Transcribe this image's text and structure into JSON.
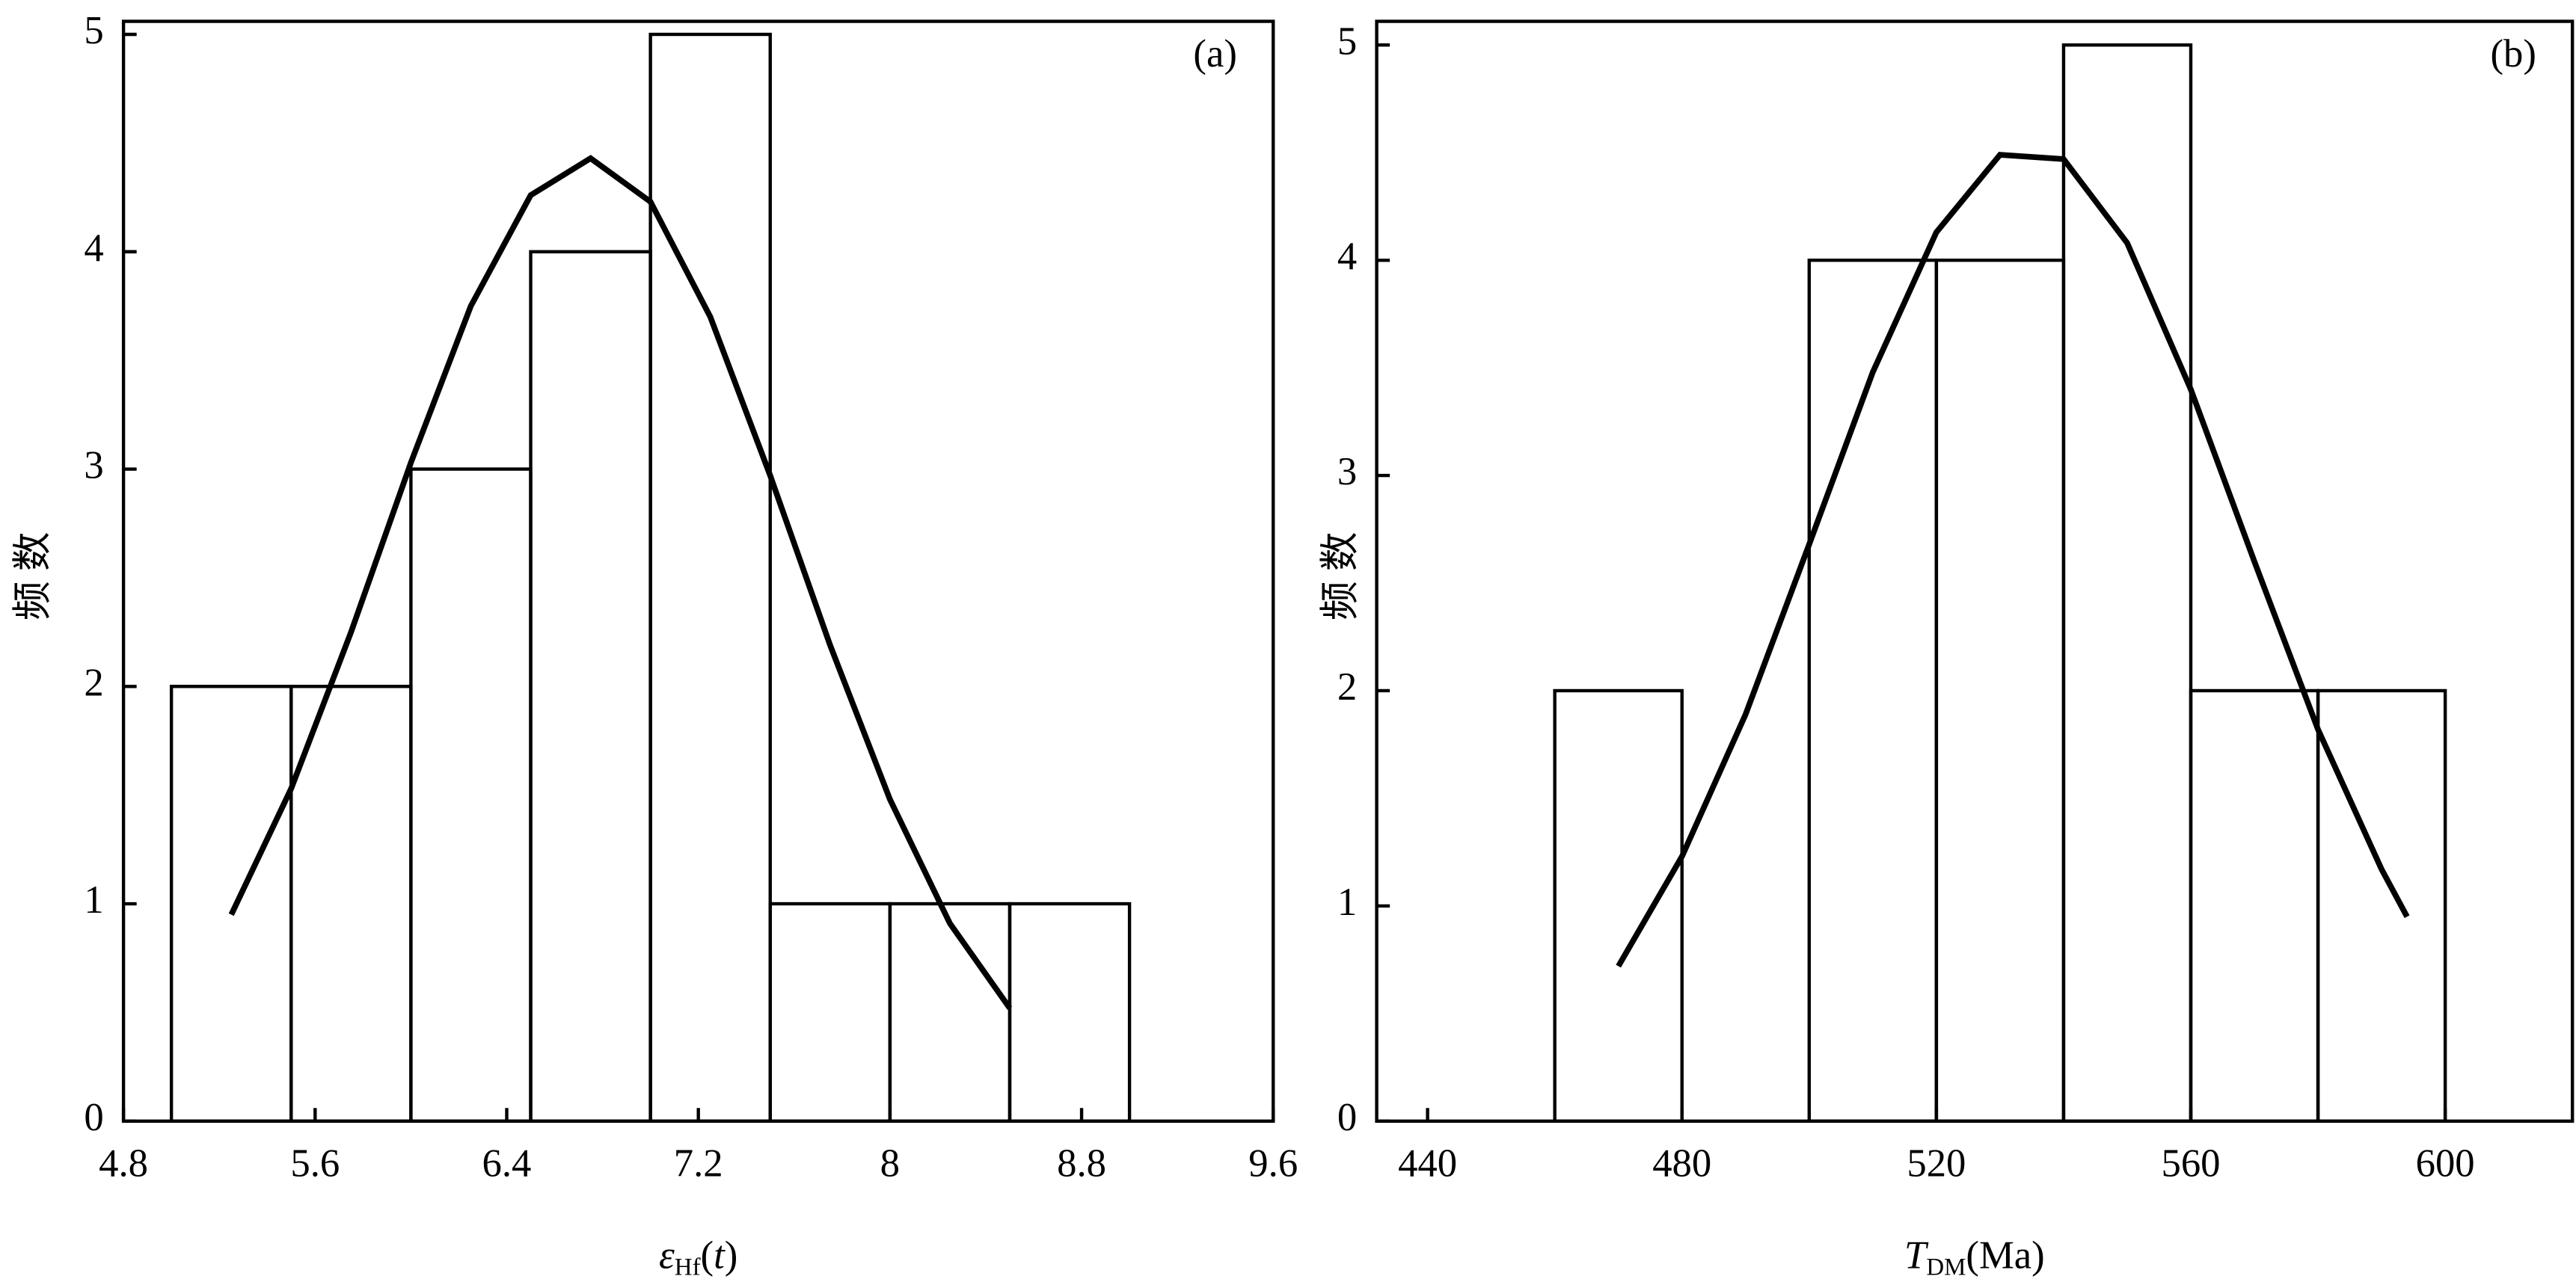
{
  "chart_data": [
    {
      "type": "histogram",
      "label": "(a)",
      "ylabel": "频数",
      "xlabel": [
        "ε",
        "Hf",
        "(",
        "t",
        ")"
      ],
      "bins": [
        5.0,
        5.5,
        6.0,
        6.5,
        7.0,
        7.5,
        8.0,
        8.5,
        9.0
      ],
      "values": [
        2,
        2,
        3,
        4,
        5,
        1,
        1,
        1
      ],
      "curve": {
        "x": [
          5.25,
          5.5,
          5.75,
          6.0,
          6.25,
          6.5,
          6.75,
          7.0,
          7.25,
          7.5,
          7.75,
          8.0,
          8.25,
          8.5
        ],
        "y": [
          0.95,
          1.53,
          2.25,
          3.03,
          3.75,
          4.26,
          4.43,
          4.23,
          3.7,
          2.97,
          2.19,
          1.48,
          0.91,
          0.52
        ]
      },
      "color": "#000000",
      "xlim": [
        4.8,
        9.6
      ],
      "xticks": [
        4.8,
        5.6,
        6.4,
        7.2,
        8,
        8.8,
        9.6
      ],
      "ylim": [
        0,
        5.06
      ],
      "yticks": [
        0,
        1,
        2,
        3,
        4,
        5
      ]
    },
    {
      "type": "histogram",
      "label": "(b)",
      "ylabel": "频数",
      "xlabel": [
        "T",
        "DM",
        "(Ma)"
      ],
      "bins": [
        460,
        480,
        500,
        520,
        540,
        560,
        580,
        600
      ],
      "values": [
        2,
        0,
        4,
        4,
        5,
        2,
        2
      ],
      "curve": {
        "x": [
          470,
          480,
          490,
          500,
          510,
          520,
          530,
          540,
          550,
          560,
          570,
          580,
          590,
          594
        ],
        "y": [
          0.72,
          1.23,
          1.89,
          2.68,
          3.48,
          4.13,
          4.49,
          4.47,
          4.08,
          3.4,
          2.6,
          1.82,
          1.17,
          0.95
        ]
      },
      "color": "#000000",
      "xlim": [
        432,
        620
      ],
      "xticks": [
        440,
        480,
        520,
        560,
        600
      ],
      "ylim": [
        0,
        5.11
      ],
      "yticks": [
        0,
        1,
        2,
        3,
        4,
        5
      ]
    }
  ]
}
